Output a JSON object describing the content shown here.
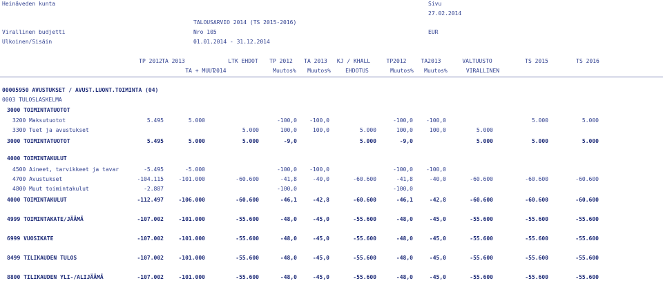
{
  "header": {
    "org": "Heinäveden kunta",
    "page_label": "Sivu",
    "date": "27.02.2014",
    "report_title": "TALOUSARVIO 2014 (TS 2015-2016)",
    "budget_label": "Virallinen budjetti",
    "budget_no": "Nro 105",
    "currency": "EUR",
    "scope_label": "Ulkoinen/Sisäin",
    "period": "01.01.2014 - 31.12.2014"
  },
  "columns": {
    "row1": [
      "TP 2012",
      "TA 2013",
      "LTK EHDOT",
      "TP 2012",
      "TA 2013",
      "KJ / KHALL",
      "TP2012",
      "TA2013",
      "VALTUUSTO",
      "TS 2015",
      "TS 2016"
    ],
    "row2": [
      "TA + MUUT",
      "2014",
      "Muutos%",
      "Muutos%",
      "EHDOTUS",
      "Muutos%",
      "Muutos%",
      "VIRALLINEN"
    ]
  },
  "sections": {
    "unit": "00005950 AVUSTUKSET / AVUST.LUONT.TOIMINTA (04)",
    "statement": "0003 TULOSLASKELMA",
    "income_heading": "3000 TOIMINTATUOTOT",
    "expense_heading": "4000 TOIMINTAKULUT"
  },
  "rows": [
    {
      "label": "3200 Maksutuotot",
      "bold": false,
      "cells": [
        "5.495",
        "5.000",
        "",
        "-100,0",
        "-100,0",
        "",
        "-100,0",
        "-100,0",
        "",
        "5.000",
        "5.000"
      ]
    },
    {
      "label": "3300 Tuet ja avustukset",
      "bold": false,
      "cells": [
        "",
        "",
        "5.000",
        "100,0",
        "100,0",
        "5.000",
        "100,0",
        "100,0",
        "5.000",
        "",
        ""
      ]
    },
    {
      "label": "3000 TOIMINTATUOTOT",
      "bold": true,
      "cells": [
        "5.495",
        "5.000",
        "5.000",
        "-9,0",
        "",
        "5.000",
        "-9,0",
        "",
        "5.000",
        "5.000",
        "5.000"
      ]
    },
    {
      "label": "4500 Aineet, tarvikkeet ja tavar",
      "bold": false,
      "cells": [
        "-5.495",
        "-5.000",
        "",
        "-100,0",
        "-100,0",
        "",
        "-100,0",
        "-100,0",
        "",
        "",
        ""
      ]
    },
    {
      "label": "4700 Avustukset",
      "bold": false,
      "cells": [
        "-104.115",
        "-101.000",
        "-60.600",
        "-41,8",
        "-40,0",
        "-60.600",
        "-41,8",
        "-40,0",
        "-60.600",
        "-60.600",
        "-60.600"
      ]
    },
    {
      "label": "4800 Muut toimintakulut",
      "bold": false,
      "cells": [
        "-2.887",
        "",
        "",
        "-100,0",
        "",
        "",
        "-100,0",
        "",
        "",
        "",
        ""
      ]
    },
    {
      "label": "4000 TOIMINTAKULUT",
      "bold": true,
      "cells": [
        "-112.497",
        "-106.000",
        "-60.600",
        "-46,1",
        "-42,8",
        "-60.600",
        "-46,1",
        "-42,8",
        "-60.600",
        "-60.600",
        "-60.600"
      ]
    },
    {
      "label": "4999 TOIMINTAKATE/JÄÄMÄ",
      "bold": true,
      "cells": [
        "-107.002",
        "-101.000",
        "-55.600",
        "-48,0",
        "-45,0",
        "-55.600",
        "-48,0",
        "-45,0",
        "-55.600",
        "-55.600",
        "-55.600"
      ]
    },
    {
      "label": "6999 VUOSIKATE",
      "bold": true,
      "cells": [
        "-107.002",
        "-101.000",
        "-55.600",
        "-48,0",
        "-45,0",
        "-55.600",
        "-48,0",
        "-45,0",
        "-55.600",
        "-55.600",
        "-55.600"
      ]
    },
    {
      "label": "8499 TILIKAUDEN TULOS",
      "bold": true,
      "cells": [
        "-107.002",
        "-101.000",
        "-55.600",
        "-48,0",
        "-45,0",
        "-55.600",
        "-48,0",
        "-45,0",
        "-55.600",
        "-55.600",
        "-55.600"
      ]
    },
    {
      "label": "8800 TILIKAUDEN YLI-/ALIJÄÄMÄ",
      "bold": true,
      "cells": [
        "-107.002",
        "-101.000",
        "-55.600",
        "-48,0",
        "-45,0",
        "-55.600",
        "-48,0",
        "-45,0",
        "-55.600",
        "-55.600",
        "-55.600"
      ]
    }
  ]
}
